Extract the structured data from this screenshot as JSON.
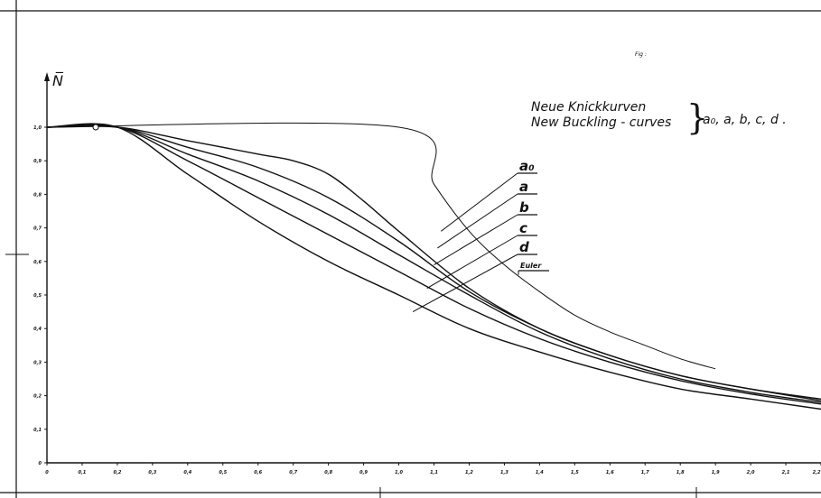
{
  "fig_label": "Fig :",
  "title_lines": [
    "Neue Knickkurven",
    "New Buckling - curves"
  ],
  "curve_set_label": "a₀, a, b, c, d .",
  "chart_data": {
    "type": "line",
    "ylabel": "N̅",
    "xlim": [
      0,
      2.2
    ],
    "ylim": [
      0,
      1.0
    ],
    "x_ticks": [
      "0",
      "0,1",
      "0,2",
      "0,3",
      "0,4",
      "0,5",
      "0,6",
      "0,7",
      "0,8",
      "0,9",
      "1,0",
      "1,1",
      "1,2",
      "1,3",
      "1,4",
      "1,5",
      "1,6",
      "1,7",
      "1,8",
      "1,9",
      "2,0",
      "2,1",
      "2,2"
    ],
    "y_ticks": [
      "0",
      "0,1",
      "0,2",
      "0,3",
      "0,4",
      "0,5",
      "0,6",
      "0,7",
      "0,8",
      "0,9",
      "1,0"
    ],
    "grid": false,
    "series": [
      {
        "name": "a₀",
        "x": [
          0,
          0.2,
          0.4,
          0.6,
          0.7,
          0.8,
          0.9,
          1.0,
          1.2,
          1.4,
          1.6,
          1.8,
          2.0,
          2.2
        ],
        "y": [
          1.0,
          1.0,
          0.96,
          0.92,
          0.9,
          0.86,
          0.78,
          0.69,
          0.52,
          0.4,
          0.32,
          0.26,
          0.22,
          0.19
        ]
      },
      {
        "name": "a",
        "x": [
          0,
          0.2,
          0.4,
          0.6,
          0.8,
          1.0,
          1.2,
          1.4,
          1.6,
          1.8,
          2.0,
          2.2
        ],
        "y": [
          1.0,
          1.0,
          0.94,
          0.88,
          0.79,
          0.66,
          0.51,
          0.4,
          0.32,
          0.26,
          0.22,
          0.185
        ]
      },
      {
        "name": "b",
        "x": [
          0,
          0.2,
          0.4,
          0.6,
          0.8,
          1.0,
          1.2,
          1.4,
          1.6,
          1.8,
          2.0,
          2.2
        ],
        "y": [
          1.0,
          1.0,
          0.92,
          0.84,
          0.74,
          0.62,
          0.5,
          0.39,
          0.31,
          0.25,
          0.21,
          0.18
        ]
      },
      {
        "name": "c",
        "x": [
          0,
          0.2,
          0.4,
          0.6,
          0.8,
          1.0,
          1.2,
          1.4,
          1.6,
          1.8,
          2.0,
          2.2
        ],
        "y": [
          1.0,
          1.0,
          0.9,
          0.79,
          0.68,
          0.57,
          0.46,
          0.37,
          0.3,
          0.245,
          0.205,
          0.175
        ]
      },
      {
        "name": "d",
        "x": [
          0,
          0.2,
          0.4,
          0.6,
          0.8,
          1.0,
          1.2,
          1.4,
          1.6,
          1.8,
          2.0,
          2.2
        ],
        "y": [
          1.0,
          1.0,
          0.86,
          0.72,
          0.6,
          0.5,
          0.4,
          0.33,
          0.27,
          0.22,
          0.19,
          0.16
        ]
      },
      {
        "name": "Euler",
        "x": [
          0,
          1.0,
          1.1,
          1.2,
          1.3,
          1.4,
          1.5,
          1.6,
          1.7,
          1.8,
          1.9
        ],
        "y": [
          1.0,
          1.0,
          0.83,
          0.69,
          0.59,
          0.51,
          0.44,
          0.39,
          0.35,
          0.31,
          0.28
        ]
      }
    ]
  }
}
